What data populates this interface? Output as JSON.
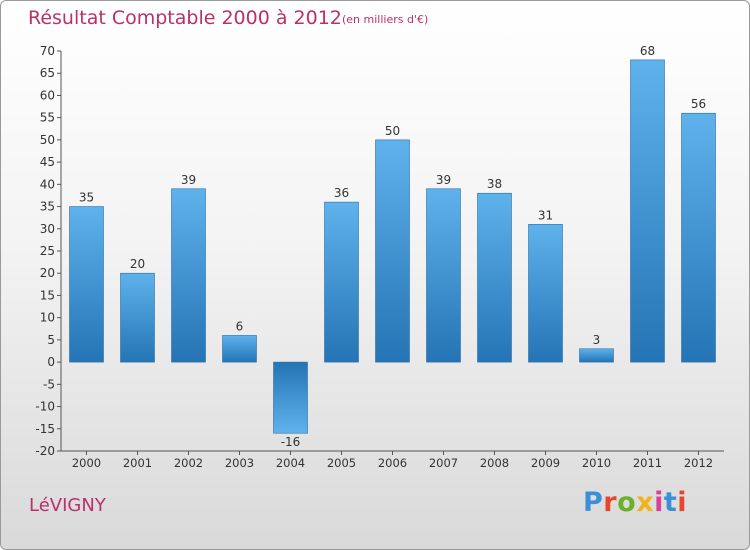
{
  "header": {
    "title": "Résultat Comptable 2000 à 2012",
    "subtitle": "(en milliers d'€)"
  },
  "footer": {
    "commune": "LéVIGNY",
    "brand": "Proxiti",
    "brand_colors": [
      "#3a8fd8",
      "#e8462c",
      "#6ab02c",
      "#f2b21c",
      "#d9409a",
      "#3a8fd8",
      "#e8462c"
    ]
  },
  "colors": {
    "accent": "#b8316a",
    "bar_light": "#5aaeea",
    "bar_dark": "#2676b8"
  },
  "chart_data": {
    "type": "bar",
    "title": "Résultat Comptable 2000 à 2012",
    "ylabel": "en milliers d'€",
    "xlabel": "",
    "ylim": [
      -20,
      70
    ],
    "ytick_step": 5,
    "grid": false,
    "categories": [
      "2000",
      "2001",
      "2002",
      "2003",
      "2004",
      "2005",
      "2006",
      "2007",
      "2008",
      "2009",
      "2010",
      "2011",
      "2012"
    ],
    "values": [
      35,
      20,
      39,
      6,
      -16,
      36,
      50,
      39,
      38,
      31,
      3,
      68,
      56
    ]
  }
}
